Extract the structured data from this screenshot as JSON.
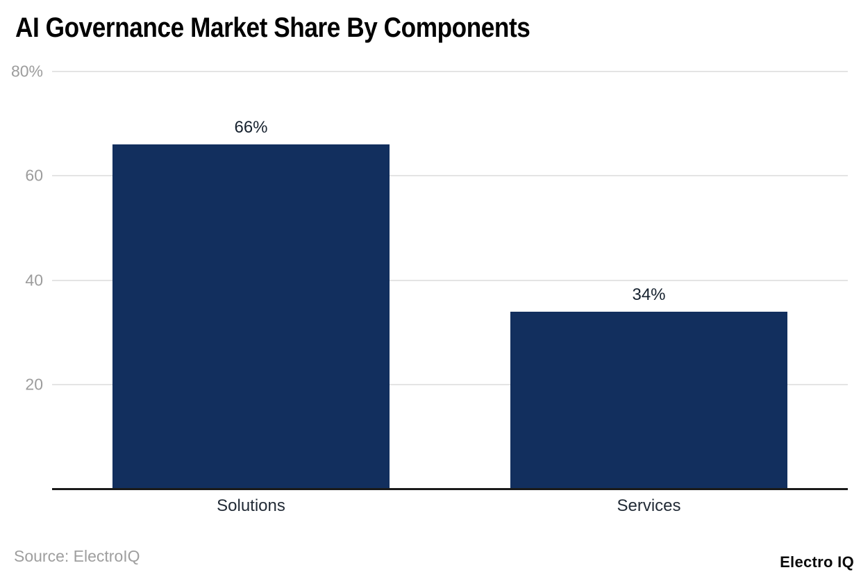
{
  "header": {
    "title": "AI Governance Market Share By Components"
  },
  "footer": {
    "source_text": "Source: ElectroIQ",
    "brand": "Electro IQ"
  },
  "chart_data": {
    "type": "bar",
    "title": "AI Governance Market Share By Components",
    "categories": [
      "Solutions",
      "Services"
    ],
    "values": [
      66,
      34
    ],
    "value_labels": [
      "66%",
      "34%"
    ],
    "xlabel": "",
    "ylabel": "",
    "ylim": [
      0,
      80
    ],
    "y_ticks": [
      {
        "value": 80,
        "label": "80%"
      },
      {
        "value": 60,
        "label": "60"
      },
      {
        "value": 40,
        "label": "40"
      },
      {
        "value": 20,
        "label": "20"
      }
    ],
    "grid": true,
    "legend": false,
    "bar_width_ratio": 0.698,
    "colors": {
      "bar": "#122f5e",
      "grid_line": "#e4e4e4",
      "axis_line": "#1a1a1a",
      "tick_label": "#9c9c9c",
      "value_label": "#16212e",
      "category_label": "#222b36",
      "title": "#000000",
      "source": "#9e9e9e",
      "brand": "#0a0a0a",
      "background": "#ffffff"
    }
  }
}
